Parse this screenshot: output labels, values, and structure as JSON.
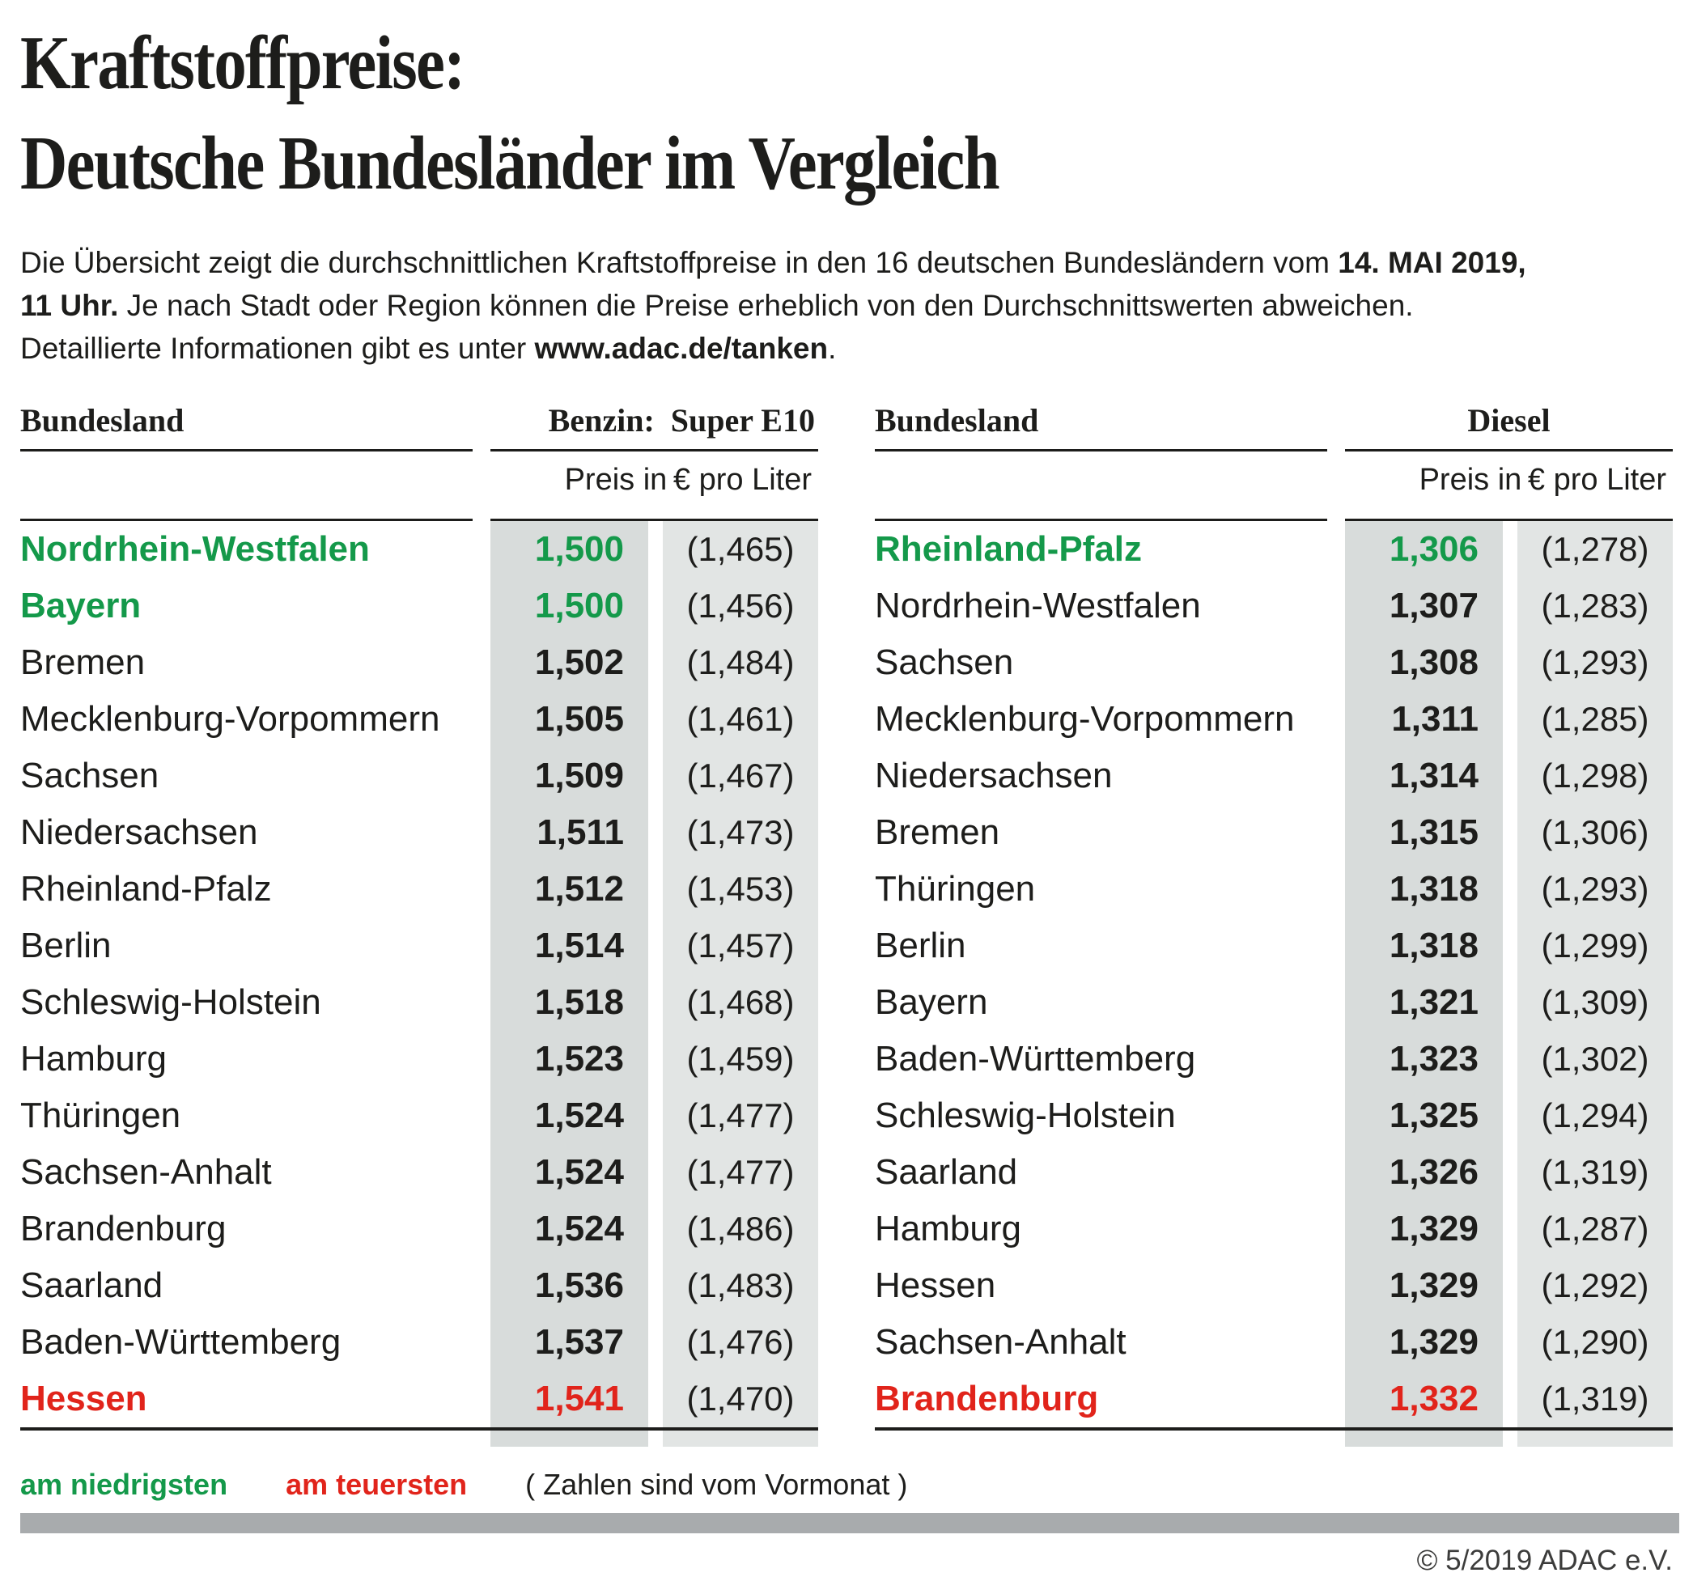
{
  "title": {
    "line1": "Kraftstoffpreise:",
    "line2": "Deutsche Bundesländer im Vergleich"
  },
  "intro_lines": [
    [
      {
        "t": "Die Übersicht zeigt die durchschnittlichen Kraftstoffpreise in den 16 deutschen Bundesländern vom ",
        "b": false
      },
      {
        "t": "14. MAI 2019,",
        "b": true
      }
    ],
    [
      {
        "t": "11 Uhr.",
        "b": true
      },
      {
        "t": " Je nach Stadt oder Region können die Preise erheblich von den Durchschnittswerten abweichen.",
        "b": false
      }
    ],
    [
      {
        "t": "Detaillierte Informationen gibt es unter ",
        "b": false
      },
      {
        "t": "www.adac.de/tanken",
        "b": true
      },
      {
        "t": ".",
        "b": false
      }
    ]
  ],
  "chart_data": [
    {
      "type": "table",
      "region_label": "Bundesland",
      "fuel_label": "Benzin: Super E10",
      "price_label": "Preis in € pro Liter",
      "columns": [
        "Bundesland",
        "Preis in € pro Liter",
        "Vormonat"
      ],
      "rows": [
        {
          "state": "Nordrhein-Westfalen",
          "price": "1,500",
          "prev": "(1,465)",
          "mark": "green"
        },
        {
          "state": "Bayern",
          "price": "1,500",
          "prev": "(1,456)",
          "mark": "green"
        },
        {
          "state": "Bremen",
          "price": "1,502",
          "prev": "(1,484)",
          "mark": null
        },
        {
          "state": "Mecklenburg-Vorpommern",
          "price": "1,505",
          "prev": "(1,461)",
          "mark": null
        },
        {
          "state": "Sachsen",
          "price": "1,509",
          "prev": "(1,467)",
          "mark": null
        },
        {
          "state": "Niedersachsen",
          "price": "1,511",
          "prev": "(1,473)",
          "mark": null
        },
        {
          "state": "Rheinland-Pfalz",
          "price": "1,512",
          "prev": "(1,453)",
          "mark": null
        },
        {
          "state": "Berlin",
          "price": "1,514",
          "prev": "(1,457)",
          "mark": null
        },
        {
          "state": "Schleswig-Holstein",
          "price": "1,518",
          "prev": "(1,468)",
          "mark": null
        },
        {
          "state": "Hamburg",
          "price": "1,523",
          "prev": "(1,459)",
          "mark": null
        },
        {
          "state": "Thüringen",
          "price": "1,524",
          "prev": "(1,477)",
          "mark": null
        },
        {
          "state": "Sachsen-Anhalt",
          "price": "1,524",
          "prev": "(1,477)",
          "mark": null
        },
        {
          "state": "Brandenburg",
          "price": "1,524",
          "prev": "(1,486)",
          "mark": null
        },
        {
          "state": "Saarland",
          "price": "1,536",
          "prev": "(1,483)",
          "mark": null
        },
        {
          "state": "Baden-Württemberg",
          "price": "1,537",
          "prev": "(1,476)",
          "mark": null
        },
        {
          "state": "Hessen",
          "price": "1,541",
          "prev": "(1,470)",
          "mark": "red"
        }
      ]
    },
    {
      "type": "table",
      "region_label": "Bundesland",
      "fuel_label": "Diesel",
      "price_label": "Preis in € pro Liter",
      "columns": [
        "Bundesland",
        "Preis in € pro Liter",
        "Vormonat"
      ],
      "rows": [
        {
          "state": "Rheinland-Pfalz",
          "price": "1,306",
          "prev": "(1,278)",
          "mark": "green"
        },
        {
          "state": "Nordrhein-Westfalen",
          "price": "1,307",
          "prev": "(1,283)",
          "mark": null
        },
        {
          "state": "Sachsen",
          "price": "1,308",
          "prev": "(1,293)",
          "mark": null
        },
        {
          "state": "Mecklenburg-Vorpommern",
          "price": "1,311",
          "prev": "(1,285)",
          "mark": null
        },
        {
          "state": "Niedersachsen",
          "price": "1,314",
          "prev": "(1,298)",
          "mark": null
        },
        {
          "state": "Bremen",
          "price": "1,315",
          "prev": "(1,306)",
          "mark": null
        },
        {
          "state": "Thüringen",
          "price": "1,318",
          "prev": "(1,293)",
          "mark": null
        },
        {
          "state": "Berlin",
          "price": "1,318",
          "prev": "(1,299)",
          "mark": null
        },
        {
          "state": "Bayern",
          "price": "1,321",
          "prev": "(1,309)",
          "mark": null
        },
        {
          "state": "Baden-Württemberg",
          "price": "1,323",
          "prev": "(1,302)",
          "mark": null
        },
        {
          "state": "Schleswig-Holstein",
          "price": "1,325",
          "prev": "(1,294)",
          "mark": null
        },
        {
          "state": "Saarland",
          "price": "1,326",
          "prev": "(1,319)",
          "mark": null
        },
        {
          "state": "Hamburg",
          "price": "1,329",
          "prev": "(1,287)",
          "mark": null
        },
        {
          "state": "Hessen",
          "price": "1,329",
          "prev": "(1,292)",
          "mark": null
        },
        {
          "state": "Sachsen-Anhalt",
          "price": "1,329",
          "prev": "(1,290)",
          "mark": null
        },
        {
          "state": "Brandenburg",
          "price": "1,332",
          "prev": "(1,319)",
          "mark": "red"
        }
      ]
    }
  ],
  "legend": {
    "lowest": "am niedrigsten",
    "highest": "am teuersten",
    "note": "( Zahlen sind vom Vormonat )"
  },
  "footer": {
    "copyright": "© 5/2019 ADAC e.V."
  },
  "colors": {
    "green": "#14994a",
    "red": "#e1241b",
    "ink": "#1d1d1b",
    "band1": "#d8dcdb",
    "band2": "#e2e5e4",
    "bar": "#a8abad",
    "footer": "#3c3c3b"
  }
}
